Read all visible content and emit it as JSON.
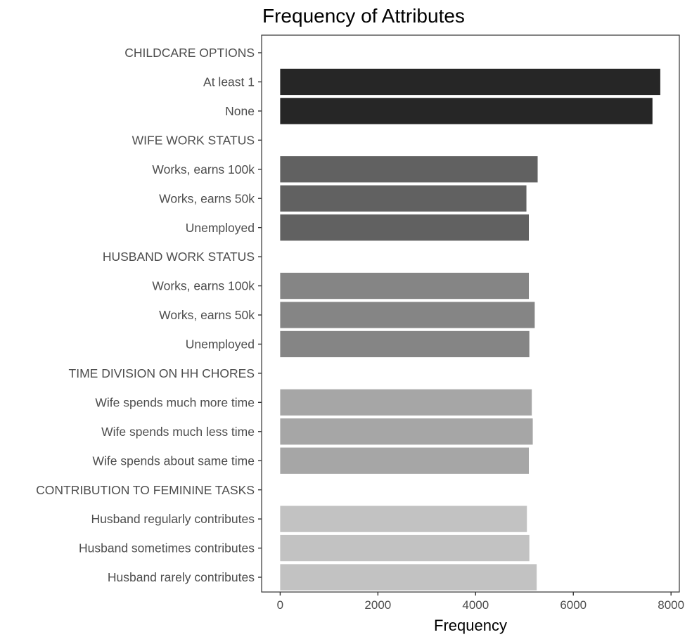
{
  "chart_data": {
    "type": "bar",
    "orientation": "horizontal",
    "title": "Frequency of Attributes",
    "xlabel": "Frequency",
    "ylabel": "",
    "xlim": [
      -380,
      8170
    ],
    "x_ticks": [
      0,
      2000,
      4000,
      6000,
      8000
    ],
    "grid": false,
    "legend": "none",
    "categories": [
      {
        "label": "CHILDCARE OPTIONS",
        "value": null,
        "group": 0
      },
      {
        "label": "At least 1",
        "value": 7780,
        "group": 0
      },
      {
        "label": "None",
        "value": 7620,
        "group": 0
      },
      {
        "label": "WIFE WORK STATUS",
        "value": null,
        "group": 1
      },
      {
        "label": "Works, earns 100k",
        "value": 5270,
        "group": 1
      },
      {
        "label": "Works, earns 50k",
        "value": 5040,
        "group": 1
      },
      {
        "label": "Unemployed",
        "value": 5090,
        "group": 1
      },
      {
        "label": "HUSBAND WORK STATUS",
        "value": null,
        "group": 2
      },
      {
        "label": "Works, earns 100k",
        "value": 5090,
        "group": 2
      },
      {
        "label": "Works, earns 50k",
        "value": 5210,
        "group": 2
      },
      {
        "label": "Unemployed",
        "value": 5100,
        "group": 2
      },
      {
        "label": "TIME DIVISION ON HH CHORES",
        "value": null,
        "group": 3
      },
      {
        "label": "Wife spends much more time",
        "value": 5150,
        "group": 3
      },
      {
        "label": "Wife spends much less time",
        "value": 5170,
        "group": 3
      },
      {
        "label": "Wife spends about same time",
        "value": 5090,
        "group": 3
      },
      {
        "label": "CONTRIBUTION TO FEMININE TASKS",
        "value": null,
        "group": 4
      },
      {
        "label": "Husband regularly contributes",
        "value": 5050,
        "group": 4
      },
      {
        "label": "Husband sometimes contributes",
        "value": 5100,
        "group": 4
      },
      {
        "label": "Husband rarely contributes",
        "value": 5250,
        "group": 4
      }
    ],
    "group_colors": [
      "#262626",
      "#616161",
      "#858585",
      "#a6a6a6",
      "#c2c2c2"
    ]
  }
}
